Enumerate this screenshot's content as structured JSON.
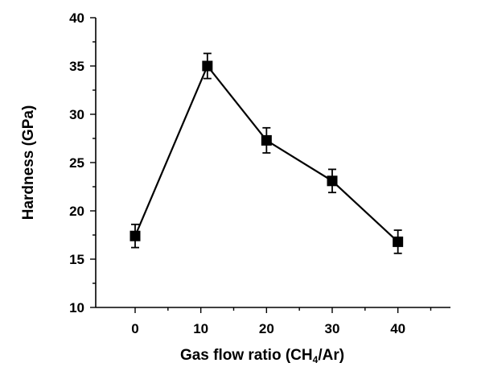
{
  "chart_data": {
    "type": "line",
    "title": "",
    "xlabel_main": "Gas flow ratio (CH",
    "xlabel_sub": "4",
    "xlabel_end": "/Ar)",
    "ylabel": "Hardness (GPa)",
    "xlim": [
      -6,
      48
    ],
    "ylim": [
      10,
      40
    ],
    "x_ticks": [
      0,
      10,
      20,
      30,
      40
    ],
    "y_ticks": [
      10,
      15,
      20,
      25,
      30,
      35,
      40
    ],
    "grid": false,
    "series": [
      {
        "x": [
          0,
          11,
          20,
          30,
          40
        ],
        "values": [
          17.4,
          35.0,
          27.3,
          23.1,
          16.8
        ],
        "error": [
          1.2,
          1.3,
          1.3,
          1.2,
          1.2
        ],
        "color": "#000000",
        "marker": "square"
      }
    ]
  }
}
